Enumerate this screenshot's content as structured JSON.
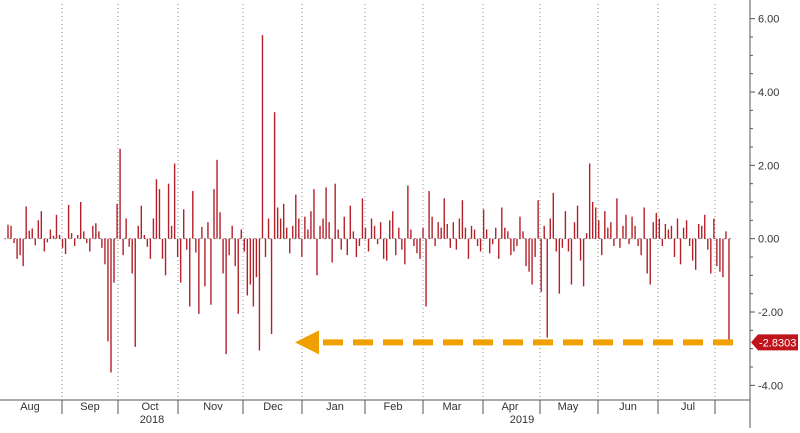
{
  "chart_data": {
    "type": "bar",
    "title": "",
    "xlabel": "",
    "ylabel": "",
    "ylim": [
      -4.4,
      6.4
    ],
    "y_ticks": [
      "6.00",
      "4.00",
      "2.00",
      "0.00",
      "-2.00",
      "-4.00"
    ],
    "x_month_labels": [
      "Aug",
      "Sep",
      "Oct",
      "Nov",
      "Dec",
      "Jan",
      "Feb",
      "Mar",
      "Apr",
      "May",
      "Jun",
      "Jul"
    ],
    "x_year_labels": [
      "2018",
      "2019"
    ],
    "grid": "vertical-dotted",
    "bar_color": "#b3202a",
    "last_value_label": "-2.8303",
    "last_value_color": "#c0141c",
    "arrow_color": "#f0a000",
    "annotation": "dashed arrow pointing left from last value back to December 2018 low",
    "series": [
      {
        "values": [
          0.38,
          0.35,
          -0.12,
          -0.55,
          -0.45,
          -0.75,
          0.88,
          0.22,
          0.28,
          -0.18,
          0.5,
          0.75,
          -0.35,
          -0.1,
          0.25,
          0.08,
          0.65,
          0.1,
          -0.25,
          -0.42,
          0.92,
          0.15,
          -0.2,
          0.1,
          1.0,
          0.2,
          -0.12,
          -0.35,
          0.35,
          0.42,
          0.2,
          -0.25,
          -0.7,
          -2.8,
          -3.65,
          -1.2,
          0.95,
          2.45,
          -0.45,
          0.55,
          -0.22,
          -0.95,
          -2.95,
          0.35,
          0.9,
          0.1,
          -0.22,
          -0.55,
          0.55,
          1.62,
          1.35,
          -0.55,
          -1.0,
          1.5,
          0.35,
          2.05,
          -0.5,
          -1.2,
          0.8,
          -0.3,
          -1.85,
          1.3,
          -0.38,
          -2.05,
          0.32,
          -1.3,
          0.45,
          -1.8,
          1.35,
          2.15,
          0.72,
          -0.95,
          -3.15,
          -0.45,
          0.35,
          -0.75,
          -2.05,
          0.25,
          -0.35,
          -1.55,
          -1.25,
          -1.85,
          -1.05,
          -3.05,
          5.55,
          -0.5,
          0.55,
          -2.6,
          3.45,
          0.85,
          0.55,
          0.95,
          0.3,
          -0.4,
          0.35,
          1.2,
          0.55,
          -0.5,
          0.6,
          0.25,
          0.75,
          1.35,
          -1.0,
          0.35,
          0.55,
          1.4,
          0.45,
          -0.65,
          1.5,
          0.25,
          -0.3,
          0.6,
          -0.45,
          0.9,
          0.2,
          -0.5,
          -0.2,
          1.1,
          0.3,
          -0.35,
          0.55,
          0.35,
          -0.15,
          0.45,
          -0.55,
          -0.6,
          0.5,
          0.75,
          -0.45,
          0.3,
          -0.3,
          -0.7,
          1.45,
          0.25,
          -0.2,
          -0.4,
          -0.55,
          0.3,
          -1.85,
          1.3,
          0.6,
          -0.2,
          0.45,
          0.3,
          1.1,
          0.4,
          -0.25,
          0.45,
          -0.3,
          0.55,
          1.05,
          0.3,
          -0.55,
          0.35,
          0.25,
          -0.2,
          -0.35,
          0.8,
          0.25,
          -0.4,
          -0.15,
          0.3,
          -0.55,
          0.85,
          0.3,
          0.2,
          -0.45,
          -0.35,
          -0.2,
          0.6,
          0.2,
          -0.75,
          -0.9,
          -1.25,
          -0.5,
          1.05,
          -1.45,
          0.35,
          -2.7,
          0.55,
          1.25,
          -0.35,
          -1.5,
          -0.25,
          0.75,
          -0.35,
          -1.25,
          0.45,
          0.9,
          -0.6,
          -1.3,
          0.15,
          2.05,
          1.0,
          0.85,
          0.5,
          -0.45,
          0.75,
          0.3,
          0.45,
          -0.2,
          1.1,
          -0.25,
          0.35,
          0.65,
          -0.15,
          0.6,
          0.35,
          -0.2,
          -0.45,
          0.85,
          -0.95,
          -1.25,
          0.45,
          0.7,
          0.55,
          -0.2,
          0.4,
          0.25,
          0.35,
          -0.5,
          0.55,
          -0.7,
          0.3,
          0.5,
          -0.2,
          -0.6,
          -0.85,
          0.4,
          0.35,
          0.65,
          -0.3,
          -0.95,
          0.55,
          -0.75,
          -0.9,
          -1.05,
          0.2,
          -2.83
        ]
      }
    ]
  }
}
